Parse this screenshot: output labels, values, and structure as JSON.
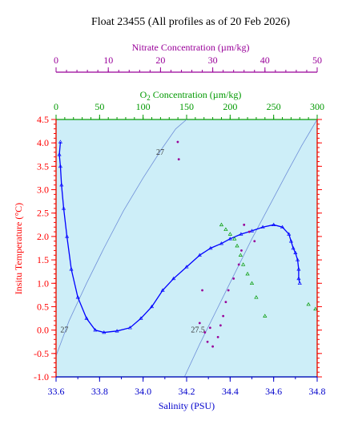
{
  "title": "Float 23455  (All profiles as of 20 Feb 2026)",
  "colors": {
    "plot_bg": "#cdeef8",
    "temp_axis": "#ff0000",
    "salinity_axis": "#0000cc",
    "nitrate_axis": "#990099",
    "oxygen_axis": "#009900",
    "profile_line": "#0000ff",
    "isopycnal": "#6f8fd8"
  },
  "chart_data": {
    "type": "scatter",
    "title": "Float 23455  (All profiles as of 20 Feb 2026)",
    "grid": false,
    "legend": "none",
    "x_axes": [
      {
        "key": "salinity",
        "label": "Salinity (PSU)",
        "range": [
          33.6,
          34.8
        ],
        "ticks": [
          "33.6",
          "33.8",
          "34.0",
          "34.2",
          "34.4",
          "34.6",
          "34.8"
        ]
      },
      {
        "key": "oxygen",
        "label_prefix": "O",
        "label_sub": "2",
        "label_suffix": " Concentration (µm/kg)",
        "range": [
          0,
          300
        ],
        "ticks": [
          "0",
          "50",
          "100",
          "150",
          "200",
          "250",
          "300"
        ]
      },
      {
        "key": "nitrate",
        "label": "Nitrate Concentration (µm/kg)",
        "range": [
          0,
          50
        ],
        "ticks": [
          "0",
          "10",
          "20",
          "30",
          "40",
          "50"
        ]
      }
    ],
    "y_axis": {
      "label": "Insitu Temperature (°C)",
      "range": [
        -1.0,
        4.5
      ],
      "ticks": [
        "-1.0",
        "-0.5",
        "0.0",
        "0.5",
        "1.0",
        "1.5",
        "2.0",
        "2.5",
        "3.0",
        "3.5",
        "4.0",
        "4.5"
      ]
    },
    "isopycnals": [
      {
        "label": "27",
        "points": [
          [
            33.6,
            -0.55
          ],
          [
            33.66,
            0.2
          ],
          [
            33.74,
            1.0
          ],
          [
            33.82,
            1.75
          ],
          [
            33.91,
            2.55
          ],
          [
            34.0,
            3.25
          ],
          [
            34.09,
            3.9
          ],
          [
            34.15,
            4.3
          ],
          [
            34.2,
            4.5
          ]
        ]
      },
      {
        "label": "27.5",
        "points": [
          [
            34.19,
            -1.0
          ],
          [
            34.26,
            -0.3
          ],
          [
            34.34,
            0.45
          ],
          [
            34.42,
            1.2
          ],
          [
            34.5,
            1.95
          ],
          [
            34.58,
            2.65
          ],
          [
            34.66,
            3.35
          ],
          [
            34.73,
            3.95
          ],
          [
            34.8,
            4.5
          ]
        ]
      }
    ],
    "series": [
      {
        "key": "salinity",
        "points": [
          [
            33.62,
            4.02
          ],
          [
            33.615,
            3.75
          ],
          [
            33.62,
            3.5
          ],
          [
            33.625,
            3.1
          ],
          [
            33.635,
            2.6
          ],
          [
            33.65,
            2.0
          ],
          [
            33.67,
            1.3
          ],
          [
            33.7,
            0.7
          ],
          [
            33.74,
            0.25
          ],
          [
            33.78,
            0.0
          ],
          [
            33.82,
            -0.05
          ],
          [
            33.88,
            -0.02
          ],
          [
            33.94,
            0.05
          ],
          [
            33.99,
            0.25
          ],
          [
            34.04,
            0.5
          ],
          [
            34.09,
            0.85
          ],
          [
            34.14,
            1.1
          ],
          [
            34.2,
            1.35
          ],
          [
            34.26,
            1.6
          ],
          [
            34.31,
            1.75
          ],
          [
            34.36,
            1.85
          ],
          [
            34.4,
            1.95
          ],
          [
            34.45,
            2.05
          ],
          [
            34.5,
            2.12
          ],
          [
            34.55,
            2.2
          ],
          [
            34.6,
            2.25
          ],
          [
            34.64,
            2.2
          ],
          [
            34.67,
            2.05
          ],
          [
            34.68,
            1.9
          ],
          [
            34.69,
            1.75
          ],
          [
            34.7,
            1.65
          ],
          [
            34.71,
            1.5
          ],
          [
            34.715,
            1.3
          ],
          [
            34.715,
            1.1
          ],
          [
            34.72,
            1.0
          ]
        ]
      },
      {
        "key": "oxygen",
        "points": [
          [
            190,
            2.25
          ],
          [
            195,
            2.15
          ],
          [
            200,
            2.05
          ],
          [
            205,
            1.95
          ],
          [
            208,
            1.8
          ],
          [
            212,
            1.6
          ],
          [
            215,
            1.4
          ],
          [
            220,
            1.2
          ],
          [
            225,
            1.0
          ],
          [
            230,
            0.7
          ],
          [
            240,
            0.3
          ],
          [
            290,
            0.55
          ],
          [
            298,
            0.45
          ]
        ]
      },
      {
        "key": "nitrate",
        "points": [
          [
            23.3,
            4.02
          ],
          [
            23.5,
            3.65
          ],
          [
            36.0,
            2.25
          ],
          [
            37.0,
            2.1
          ],
          [
            38.0,
            1.9
          ],
          [
            35.5,
            1.7
          ],
          [
            35.0,
            1.4
          ],
          [
            34.0,
            1.1
          ],
          [
            33.0,
            0.85
          ],
          [
            32.5,
            0.6
          ],
          [
            32.0,
            0.3
          ],
          [
            31.5,
            0.1
          ],
          [
            31.0,
            -0.15
          ],
          [
            30.0,
            -0.35
          ],
          [
            29.0,
            -0.25
          ],
          [
            28.5,
            -0.05
          ],
          [
            27.5,
            0.15
          ],
          [
            29.5,
            0.05
          ],
          [
            28.0,
            0.85
          ]
        ]
      }
    ]
  }
}
